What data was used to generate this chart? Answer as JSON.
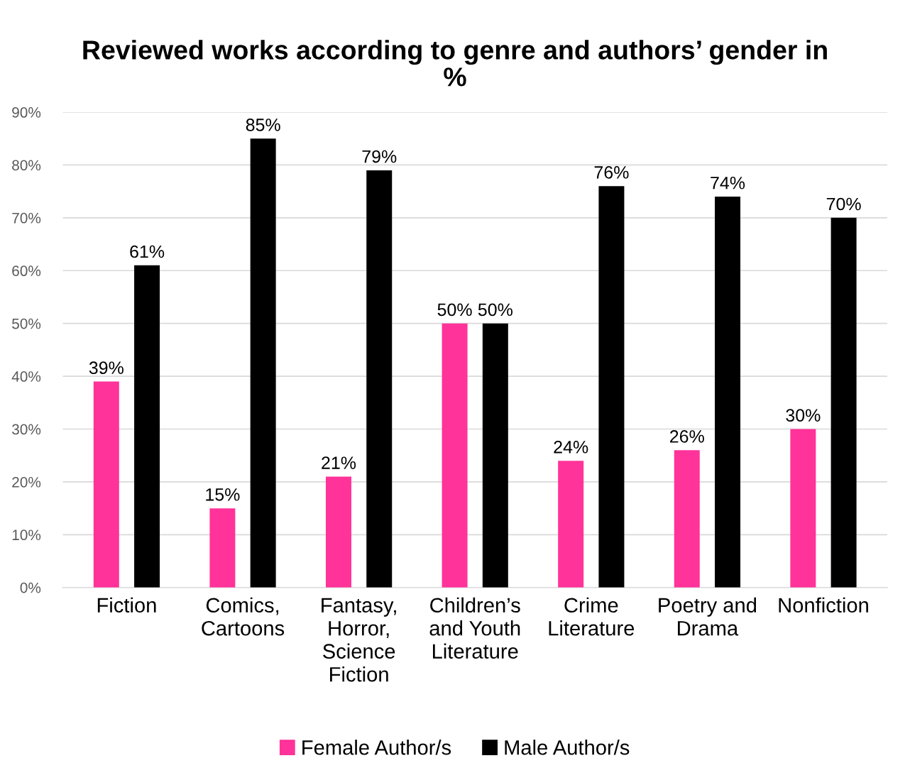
{
  "chart_data": {
    "type": "bar",
    "title": "Reviewed works according to genre and authors’ gender in\n%",
    "categories": [
      "Fiction",
      "Comics,\nCartoons",
      "Fantasy,\nHorror,\nScience\nFiction",
      "Children’s\nand Youth\nLiterature",
      "Crime\nLiterature",
      "Poetry and\nDrama",
      "Nonfiction"
    ],
    "series": [
      {
        "name": "Female Author/s",
        "color": "#ff3399",
        "values": [
          39,
          15,
          21,
          50,
          24,
          26,
          30
        ],
        "value_labels": [
          "39%",
          "15%",
          "21%",
          "50%",
          "24%",
          "26%",
          "30%"
        ]
      },
      {
        "name": "Male Author/s",
        "color": "#000000",
        "values": [
          61,
          85,
          79,
          50,
          76,
          74,
          70
        ],
        "value_labels": [
          "61%",
          "85%",
          "79%",
          "50%",
          "76%",
          "74%",
          "70%"
        ]
      }
    ],
    "ylim": [
      0,
      90
    ],
    "yticks": [
      {
        "value": 0,
        "label": "0%"
      },
      {
        "value": 10,
        "label": "10%"
      },
      {
        "value": 20,
        "label": "20%"
      },
      {
        "value": 30,
        "label": "30%"
      },
      {
        "value": 40,
        "label": "40%"
      },
      {
        "value": 50,
        "label": "50%"
      },
      {
        "value": 60,
        "label": "60%"
      },
      {
        "value": 70,
        "label": "70%"
      },
      {
        "value": 80,
        "label": "80%"
      },
      {
        "value": 90,
        "label": "90%"
      }
    ],
    "grid": "y",
    "legend": "bottom"
  }
}
